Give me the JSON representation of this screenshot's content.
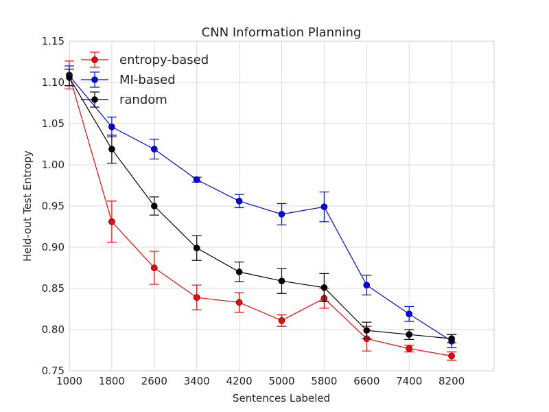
{
  "chart_data": {
    "type": "line",
    "title": "CNN Information Planning",
    "xlabel": "Sentences Labeled",
    "ylabel": "Held-out Test Entropy",
    "xlim": [
      1000,
      9000
    ],
    "ylim": [
      0.75,
      1.15
    ],
    "x_ticks": [
      "1000",
      "1800",
      "2600",
      "3400",
      "4200",
      "5000",
      "5800",
      "6600",
      "7400",
      "8200"
    ],
    "y_ticks": [
      "0.75",
      "0.80",
      "0.85",
      "0.90",
      "0.95",
      "1.00",
      "1.05",
      "1.10",
      "1.15"
    ],
    "grid": true,
    "legend_position": "top-left",
    "x": [
      1000,
      1800,
      2600,
      3400,
      4200,
      5000,
      5800,
      6600,
      7400,
      8200
    ],
    "series": [
      {
        "name": "entropy-based",
        "color": "#ff0000",
        "values": [
          1.109,
          0.931,
          0.875,
          0.839,
          0.833,
          0.811,
          0.838,
          0.789,
          0.777,
          0.768
        ],
        "errors": [
          0.017,
          0.025,
          0.02,
          0.015,
          0.012,
          0.007,
          0.012,
          0.015,
          0.004,
          0.005
        ]
      },
      {
        "name": "MI-based",
        "color": "#0000ff",
        "values": [
          1.108,
          1.046,
          1.019,
          0.982,
          0.956,
          0.94,
          0.949,
          0.854,
          0.819,
          0.786
        ],
        "errors": [
          0.012,
          0.012,
          0.012,
          0.003,
          0.008,
          0.013,
          0.018,
          0.012,
          0.009,
          0.008
        ]
      },
      {
        "name": "random",
        "color": "#000000",
        "values": [
          1.106,
          1.019,
          0.95,
          0.899,
          0.87,
          0.859,
          0.851,
          0.799,
          0.794,
          0.789
        ],
        "errors": [
          0.01,
          0.017,
          0.011,
          0.015,
          0.012,
          0.015,
          0.017,
          0.01,
          0.006,
          0.005
        ]
      }
    ]
  }
}
